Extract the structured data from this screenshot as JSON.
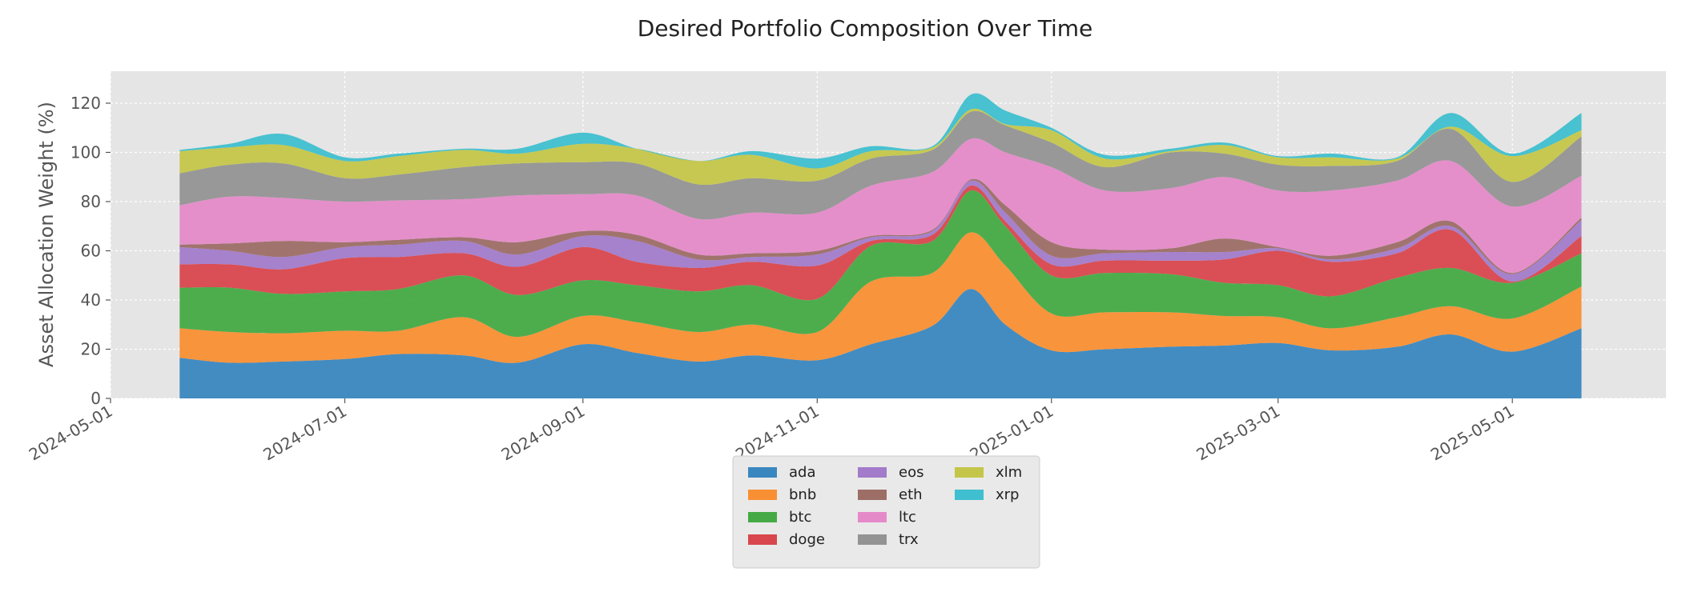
{
  "chart_data": {
    "type": "area",
    "stacked": true,
    "title": "Desired Portfolio Composition Over Time",
    "xlabel": "",
    "ylabel": "Asset Allocation Weight (%)",
    "xlim": [
      "2024-05-01",
      "2025-06-10"
    ],
    "ylim": [
      0,
      133
    ],
    "yticks": [
      0,
      20,
      40,
      60,
      80,
      100,
      120
    ],
    "xticks": [
      "2024-05-01",
      "2024-07-01",
      "2024-09-01",
      "2024-11-01",
      "2025-01-01",
      "2025-03-01",
      "2025-05-01"
    ],
    "grid": true,
    "legend_placement": "below-center",
    "dates": [
      "2024-05-19",
      "2024-06-01",
      "2024-06-15",
      "2024-07-01",
      "2024-07-15",
      "2024-08-01",
      "2024-08-15",
      "2024-09-01",
      "2024-09-15",
      "2024-10-01",
      "2024-10-15",
      "2024-11-01",
      "2024-11-15",
      "2024-12-01",
      "2024-12-11",
      "2024-12-20",
      "2025-01-01",
      "2025-01-15",
      "2025-02-01",
      "2025-02-15",
      "2025-03-01",
      "2025-03-15",
      "2025-04-01",
      "2025-04-15",
      "2025-05-01",
      "2025-05-19"
    ],
    "series": [
      {
        "name": "ada",
        "color": "#3a87c0",
        "values": [
          16.5,
          14.5,
          15.0,
          16.0,
          18.0,
          17.5,
          14.5,
          22.0,
          18.5,
          15.0,
          17.5,
          15.5,
          22.0,
          29.5,
          44.5,
          30.0,
          19.5,
          20.0,
          21.0,
          21.5,
          22.5,
          19.5,
          21.0,
          26.0,
          19.0,
          28.5
        ]
      },
      {
        "name": "bnb",
        "color": "#f98f33",
        "values": [
          12.0,
          12.5,
          11.5,
          11.5,
          9.5,
          15.5,
          10.5,
          11.5,
          12.5,
          12.0,
          12.5,
          11.5,
          25.5,
          21.5,
          23.0,
          24.0,
          15.0,
          15.0,
          14.0,
          12.0,
          10.5,
          9.0,
          12.0,
          11.5,
          13.5,
          17.0
        ]
      },
      {
        "name": "btc",
        "color": "#45aa45",
        "values": [
          16.5,
          18.0,
          16.0,
          16.0,
          17.0,
          17.0,
          17.0,
          14.5,
          15.0,
          16.5,
          16.0,
          13.5,
          14.5,
          13.0,
          17.0,
          16.0,
          15.5,
          16.0,
          15.5,
          13.5,
          13.0,
          13.0,
          16.0,
          15.5,
          14.5,
          13.5
        ]
      },
      {
        "name": "doge",
        "color": "#d8474d",
        "values": [
          9.5,
          9.5,
          10.0,
          13.5,
          13.0,
          9.0,
          11.5,
          13.5,
          9.5,
          9.5,
          9.5,
          13.5,
          2.0,
          2.5,
          2.0,
          2.0,
          4.5,
          5.0,
          5.5,
          9.5,
          14.0,
          14.0,
          10.0,
          15.5,
          0.5,
          7.0
        ]
      },
      {
        "name": "eos",
        "color": "#a27bca",
        "values": [
          7.0,
          5.5,
          5.0,
          4.5,
          5.0,
          5.0,
          5.0,
          4.5,
          8.5,
          3.5,
          2.0,
          4.5,
          1.5,
          1.5,
          2.0,
          3.5,
          3.5,
          3.0,
          3.5,
          3.0,
          1.0,
          1.0,
          2.0,
          1.5,
          3.0,
          6.5
        ]
      },
      {
        "name": "eth",
        "color": "#9c6e66",
        "values": [
          1.0,
          3.0,
          6.5,
          2.0,
          2.0,
          1.5,
          5.0,
          2.0,
          2.5,
          2.0,
          1.5,
          1.5,
          0.5,
          0.5,
          0.5,
          3.0,
          5.5,
          1.5,
          1.5,
          5.5,
          0.5,
          1.5,
          2.5,
          2.0,
          0.5,
          1.0
        ]
      },
      {
        "name": "ltc",
        "color": "#e48ac8",
        "values": [
          16.0,
          19.0,
          17.5,
          16.5,
          16.0,
          15.5,
          19.0,
          15.0,
          16.0,
          14.5,
          16.5,
          15.5,
          20.5,
          23.5,
          16.5,
          21.5,
          30.5,
          24.0,
          24.5,
          25.0,
          23.0,
          26.5,
          25.0,
          24.5,
          27.0,
          17.0
        ]
      },
      {
        "name": "trx",
        "color": "#939393",
        "values": [
          13.0,
          13.0,
          14.0,
          9.5,
          10.5,
          13.0,
          13.0,
          13.0,
          13.0,
          14.0,
          14.0,
          13.0,
          11.0,
          9.0,
          11.0,
          11.0,
          10.0,
          9.5,
          14.5,
          9.5,
          10.5,
          10.0,
          8.0,
          13.0,
          10.0,
          16.0
        ]
      },
      {
        "name": "xlm",
        "color": "#c4c64a",
        "values": [
          9.0,
          7.0,
          7.5,
          7.0,
          7.5,
          7.0,
          4.0,
          7.5,
          6.0,
          9.5,
          9.5,
          5.0,
          3.0,
          1.0,
          1.0,
          0.5,
          5.0,
          3.5,
          0.5,
          3.5,
          3.0,
          3.5,
          1.0,
          1.0,
          10.5,
          2.5
        ]
      },
      {
        "name": "xrp",
        "color": "#3fbfcf",
        "values": [
          0.5,
          1.5,
          4.5,
          1.5,
          1.0,
          0.5,
          2.0,
          4.5,
          0.0,
          0.0,
          1.5,
          4.0,
          2.0,
          0.5,
          6.0,
          5.5,
          1.0,
          1.5,
          1.0,
          1.0,
          0.5,
          1.5,
          0.5,
          5.5,
          1.0,
          7.0
        ]
      }
    ]
  }
}
